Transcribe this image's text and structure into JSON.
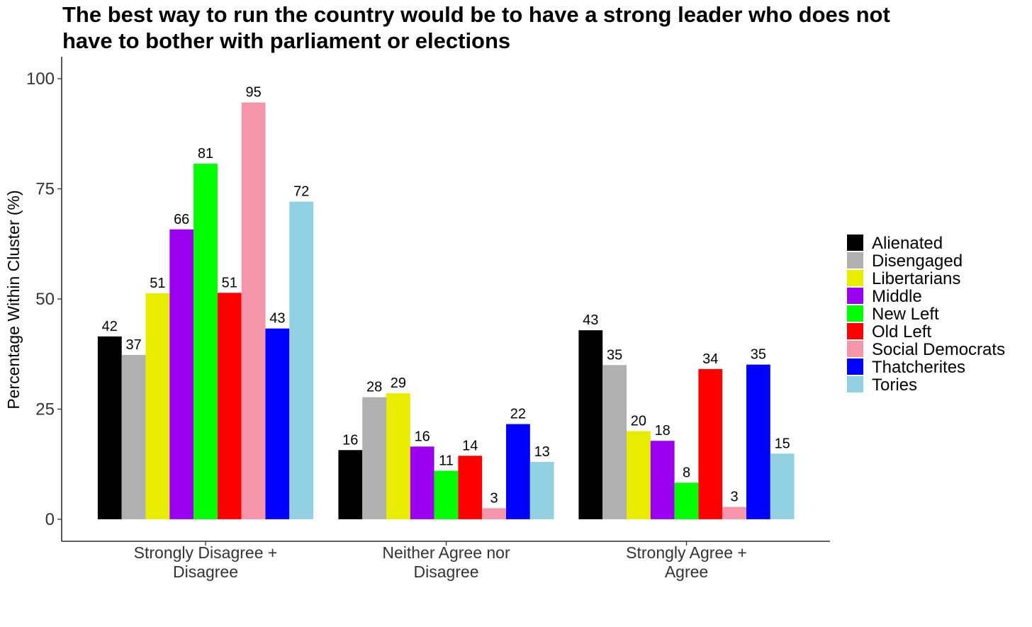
{
  "chart_data": {
    "type": "bar",
    "title": "The best way to run the country would be to have a strong leader who does not have to bother with parliament or elections",
    "title_lines": [
      "The best way to run the country would be to have a strong leader who does not",
      "have to bother with parliament or elections"
    ],
    "ylabel": "Percentage Within Cluster (%)",
    "xlabel": "",
    "ylim": [
      -5,
      105
    ],
    "yticks": [
      0,
      25,
      50,
      75,
      100
    ],
    "grid": false,
    "legend_position": "right",
    "categories": [
      [
        "Strongly Disagree +",
        "Disagree"
      ],
      [
        "Neither Agree nor",
        "Disagree"
      ],
      [
        "Strongly Agree +",
        "Agree"
      ]
    ],
    "series": [
      {
        "name": "Alienated",
        "color": "#000000",
        "values": [
          41.5,
          15.7,
          42.9
        ],
        "labels": [
          "42",
          "16",
          "43"
        ]
      },
      {
        "name": "Disengaged",
        "color": "#b0b0b0",
        "values": [
          37.3,
          27.7,
          35.0
        ],
        "labels": [
          "37",
          "28",
          "35"
        ]
      },
      {
        "name": "Libertarians",
        "color": "#e8ec00",
        "values": [
          51.3,
          28.6,
          20.0
        ],
        "labels": [
          "51",
          "29",
          "20"
        ]
      },
      {
        "name": "Middle",
        "color": "#9b00f0",
        "values": [
          65.8,
          16.5,
          17.8
        ],
        "labels": [
          "66",
          "16",
          "18"
        ]
      },
      {
        "name": "New Left",
        "color": "#00ff00",
        "values": [
          80.7,
          11.0,
          8.3
        ],
        "labels": [
          "81",
          "11",
          "8"
        ]
      },
      {
        "name": "Old Left",
        "color": "#ff0000",
        "values": [
          51.4,
          14.4,
          34.1
        ],
        "labels": [
          "51",
          "14",
          "34"
        ]
      },
      {
        "name": "Social Democrats",
        "color": "#f595aa",
        "values": [
          94.6,
          2.5,
          2.8
        ],
        "labels": [
          "95",
          "3",
          "3"
        ]
      },
      {
        "name": "Thatcherites",
        "color": "#0000ff",
        "values": [
          43.3,
          21.6,
          35.1
        ],
        "labels": [
          "43",
          "22",
          "35"
        ]
      },
      {
        "name": "Tories",
        "color": "#92d1e1",
        "values": [
          72.1,
          13.0,
          14.9
        ],
        "labels": [
          "72",
          "13",
          "15"
        ]
      }
    ]
  }
}
